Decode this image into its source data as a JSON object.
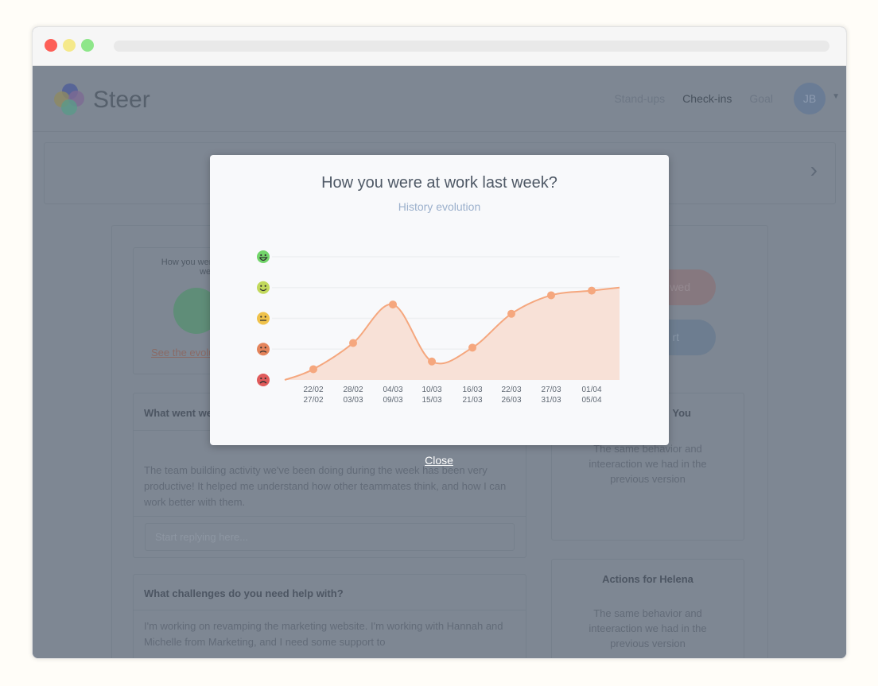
{
  "app": {
    "brand": "Steer",
    "nav": [
      "Stand-ups",
      "Check-ins",
      "Goal"
    ],
    "active_nav": "Check-ins",
    "avatar_initials": "JB"
  },
  "background": {
    "mood_card": {
      "title": "How you were at work last week?",
      "link": "See the evolution"
    },
    "buttons": [
      "wed",
      "rt"
    ],
    "went_well": {
      "title": "What went well?",
      "body": "The team building activity we've been doing during the week has been very productive! It helped me understand how other teammates think, and how I can work better with them.",
      "reply_placeholder": "Start replying here..."
    },
    "challenges": {
      "title": "What challenges do you need help with?",
      "body": "I'm working on revamping the marketing website. I'm working with Hannah and Michelle from Marketing, and I need some support to"
    },
    "actions_you": {
      "title": "You",
      "body": "The same behavior and inteeraction we had in the previous version"
    },
    "actions_helena": {
      "title": "Actions for Helena",
      "body": "The same behavior and inteeraction we had in the previous version"
    }
  },
  "modal": {
    "title": "How you were at work last week?",
    "subtitle": "History evolution",
    "close": "Close"
  },
  "chart_data": {
    "type": "area",
    "y_levels": [
      "angry",
      "sad",
      "neutral",
      "smile",
      "grin"
    ],
    "ylim": [
      0,
      4
    ],
    "grid": true,
    "categories": [
      [
        "22/02",
        "27/02"
      ],
      [
        "28/02",
        "03/03"
      ],
      [
        "04/03",
        "09/03"
      ],
      [
        "10/03",
        "15/03"
      ],
      [
        "16/03",
        "21/03"
      ],
      [
        "22/03",
        "26/03"
      ],
      [
        "27/03",
        "31/03"
      ],
      [
        "01/04",
        "05/04"
      ]
    ],
    "values": [
      0.35,
      1.2,
      2.45,
      0.6,
      1.05,
      2.15,
      2.75,
      2.9
    ],
    "start_value": 0,
    "end_value": 3.0,
    "colors": {
      "line": "#f5a77e",
      "fill": "#f8e1d7",
      "grin": "#72d56a",
      "smile": "#c2d95c",
      "neutral": "#f0c24b",
      "sad": "#e4845b",
      "angry": "#e05b5b"
    }
  }
}
